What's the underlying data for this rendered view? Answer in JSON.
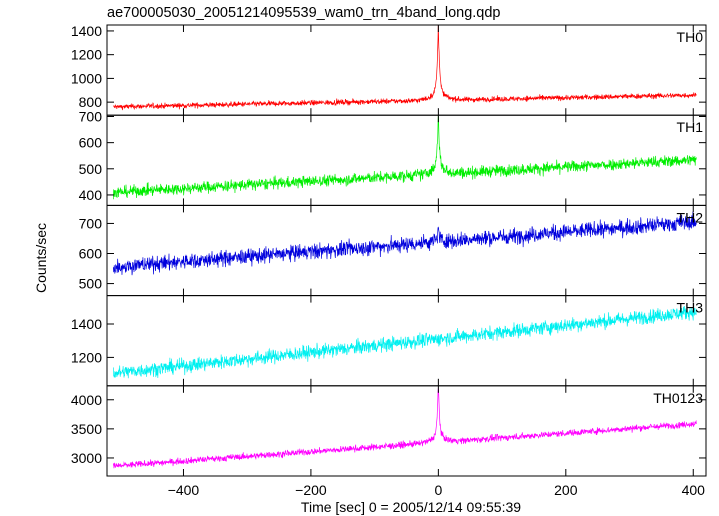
{
  "chart_data": {
    "type": "line",
    "title": "ae700005030_20051214095539_wam0_trn_4band_long.qdp",
    "xlabel": "Time [sec] 0 = 2005/12/14 09:55:39",
    "ylabel": "Counts/sec",
    "xlim": [
      -520,
      420
    ],
    "x_ticks": [
      -400,
      -200,
      0,
      200,
      400
    ],
    "x_tick_labels": [
      "−400",
      "−200",
      "0",
      "200",
      "400"
    ],
    "x_range_data": [
      -510,
      405
    ],
    "grid": false,
    "series": [
      {
        "name": "TH0",
        "color": "#ff0000",
        "ylim": [
          690,
          1450
        ],
        "yticks": [
          800,
          1000,
          1200,
          1400
        ],
        "baseline_start": 760,
        "baseline_end": 860,
        "noise": 22,
        "peak_x": 0,
        "peak_value": 1440
      },
      {
        "name": "TH1",
        "color": "#00ee00",
        "ylim": [
          360,
          705
        ],
        "yticks": [
          400,
          500,
          600,
          700
        ],
        "baseline_start": 410,
        "baseline_end": 535,
        "noise": 22,
        "peak_x": 0,
        "peak_value": 700
      },
      {
        "name": "TH2",
        "color": "#0000dd",
        "ylim": [
          460,
          760
        ],
        "yticks": [
          500,
          600,
          700
        ],
        "baseline_start": 555,
        "baseline_end": 705,
        "noise": 26,
        "peak_x": 0,
        "peak_value": 680
      },
      {
        "name": "TH3",
        "color": "#00f0f0",
        "ylim": [
          1030,
          1570
        ],
        "yticks": [
          1200,
          1400
        ],
        "baseline_start": 1105,
        "baseline_end": 1475,
        "noise": 42,
        "peak_x": null,
        "peak_value": null
      },
      {
        "name": "TH0123",
        "color": "#ff00ff",
        "ylim": [
          2690,
          4240
        ],
        "yticks": [
          3000,
          3500,
          4000
        ],
        "baseline_start": 2860,
        "baseline_end": 3590,
        "noise": 55,
        "peak_x": 0,
        "peak_value": 4220
      }
    ]
  }
}
